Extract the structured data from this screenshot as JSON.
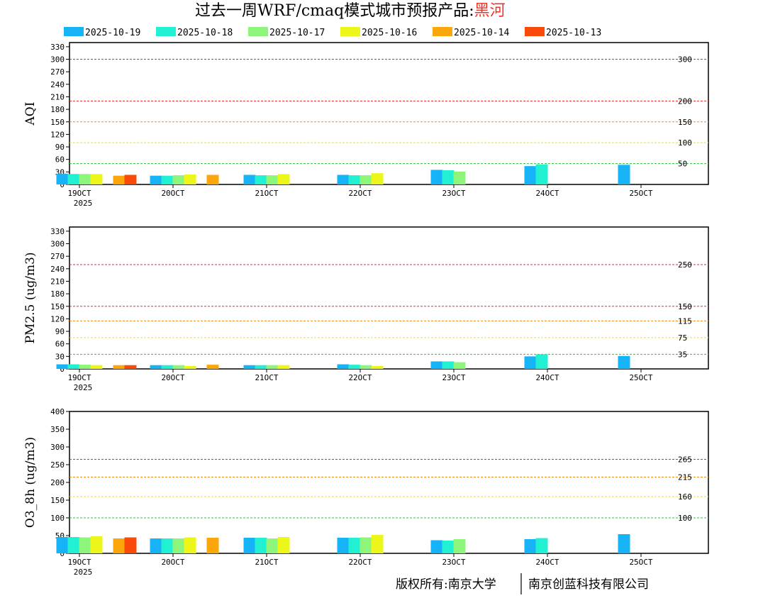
{
  "title": {
    "main": "过去一周WRF/cmaq模式城市预报产品:",
    "city": "黑河",
    "city_color": "#e8362b"
  },
  "footer": {
    "left": "版权所有:南京大学",
    "right": "南京创蓝科技有限公司"
  },
  "legend": [
    {
      "label": "2025-10-19",
      "color": "#16b4f7"
    },
    {
      "label": "2025-10-18",
      "color": "#22f0d2"
    },
    {
      "label": "2025-10-17",
      "color": "#8cf57a"
    },
    {
      "label": "2025-10-16",
      "color": "#ecf719"
    },
    {
      "label": "2025-10-14",
      "color": "#fba60a"
    },
    {
      "label": "2025-10-13",
      "color": "#fa4a0a"
    }
  ],
  "x_ticks": [
    "19OCT",
    "20OCT",
    "21OCT",
    "22OCT",
    "23OCT",
    "24OCT",
    "25OCT"
  ],
  "x_year": "2025",
  "chart_data": [
    {
      "type": "bar",
      "ylabel": "AQI",
      "ylim": [
        0,
        340
      ],
      "yticks": [
        0,
        30,
        60,
        90,
        120,
        150,
        180,
        210,
        240,
        270,
        300,
        330
      ],
      "thresholds": [
        {
          "value": 300,
          "label": "300",
          "color": "#c0306a"
        },
        {
          "value": 200,
          "label": "200",
          "color": "#e22a2a"
        },
        {
          "value": 150,
          "label": "150",
          "color": "#f08a1a"
        },
        {
          "value": 100,
          "label": "100",
          "color": "#f0e020"
        },
        {
          "value": 50,
          "label": "50",
          "color": "#2fbf3a"
        }
      ],
      "categories": [
        "19OCT",
        "20OCT",
        "21OCT",
        "22OCT",
        "23OCT",
        "24OCT",
        "25OCT"
      ],
      "series": [
        {
          "name": "2025-10-19",
          "values": [
            26,
            21,
            23,
            23,
            35,
            44,
            47
          ]
        },
        {
          "name": "2025-10-18",
          "values": [
            25,
            21,
            22,
            22,
            34,
            48,
            null
          ]
        },
        {
          "name": "2025-10-17",
          "values": [
            25,
            22,
            22,
            22,
            31,
            null,
            null
          ]
        },
        {
          "name": "2025-10-16",
          "values": [
            25,
            24,
            25,
            27,
            null,
            null,
            null
          ]
        },
        {
          "name": "2025-10-14",
          "values": [
            21,
            23,
            null,
            null,
            null,
            null,
            null
          ]
        },
        {
          "name": "2025-10-13",
          "values": [
            23,
            null,
            null,
            null,
            null,
            null,
            null
          ]
        }
      ]
    },
    {
      "type": "bar",
      "ylabel": "PM2.5 (ug/m3)",
      "ylim": [
        0,
        340
      ],
      "yticks": [
        0,
        30,
        60,
        90,
        120,
        150,
        180,
        210,
        240,
        270,
        300,
        330
      ],
      "thresholds": [
        {
          "value": 250,
          "label": "250",
          "color": "#c0306a"
        },
        {
          "value": 150,
          "label": "150",
          "color": "#e22a2a"
        },
        {
          "value": 115,
          "label": "115",
          "color": "#f08a1a"
        },
        {
          "value": 75,
          "label": "75",
          "color": "#f0e020"
        },
        {
          "value": 35,
          "label": "35",
          "color": "#2fbf3a"
        }
      ],
      "categories": [
        "19OCT",
        "20OCT",
        "21OCT",
        "22OCT",
        "23OCT",
        "24OCT",
        "25OCT"
      ],
      "series": [
        {
          "name": "2025-10-19",
          "values": [
            11,
            9,
            9,
            11,
            18,
            30,
            31
          ]
        },
        {
          "name": "2025-10-18",
          "values": [
            11,
            9,
            9,
            10,
            18,
            35,
            null
          ]
        },
        {
          "name": "2025-10-17",
          "values": [
            10,
            9,
            9,
            9,
            16,
            null,
            null
          ]
        },
        {
          "name": "2025-10-16",
          "values": [
            9,
            7,
            9,
            7,
            null,
            null,
            null
          ]
        },
        {
          "name": "2025-10-14",
          "values": [
            9,
            10,
            null,
            null,
            null,
            null,
            null
          ]
        },
        {
          "name": "2025-10-13",
          "values": [
            9,
            null,
            null,
            null,
            null,
            null,
            null
          ]
        }
      ]
    },
    {
      "type": "bar",
      "ylabel": "O3_8h (ug/m3)",
      "ylim": [
        0,
        400
      ],
      "yticks": [
        0,
        50,
        100,
        150,
        200,
        250,
        300,
        350,
        400
      ],
      "thresholds": [
        {
          "value": 265,
          "label": "265",
          "color": "#e22a2a"
        },
        {
          "value": 215,
          "label": "215",
          "color": "#f08a1a"
        },
        {
          "value": 160,
          "label": "160",
          "color": "#f0e020"
        },
        {
          "value": 100,
          "label": "100",
          "color": "#2fbf3a"
        }
      ],
      "categories": [
        "19OCT",
        "20OCT",
        "21OCT",
        "22OCT",
        "23OCT",
        "24OCT",
        "25OCT"
      ],
      "series": [
        {
          "name": "2025-10-19",
          "values": [
            46,
            42,
            44,
            44,
            37,
            40,
            54
          ]
        },
        {
          "name": "2025-10-18",
          "values": [
            46,
            42,
            44,
            44,
            36,
            43,
            null
          ]
        },
        {
          "name": "2025-10-17",
          "values": [
            45,
            42,
            42,
            45,
            40,
            null,
            null
          ]
        },
        {
          "name": "2025-10-16",
          "values": [
            48,
            45,
            46,
            52,
            null,
            null,
            null
          ]
        },
        {
          "name": "2025-10-14",
          "values": [
            42,
            44,
            null,
            null,
            null,
            null,
            null
          ]
        },
        {
          "name": "2025-10-13",
          "values": [
            45,
            null,
            null,
            null,
            null,
            null,
            null
          ]
        }
      ]
    }
  ]
}
